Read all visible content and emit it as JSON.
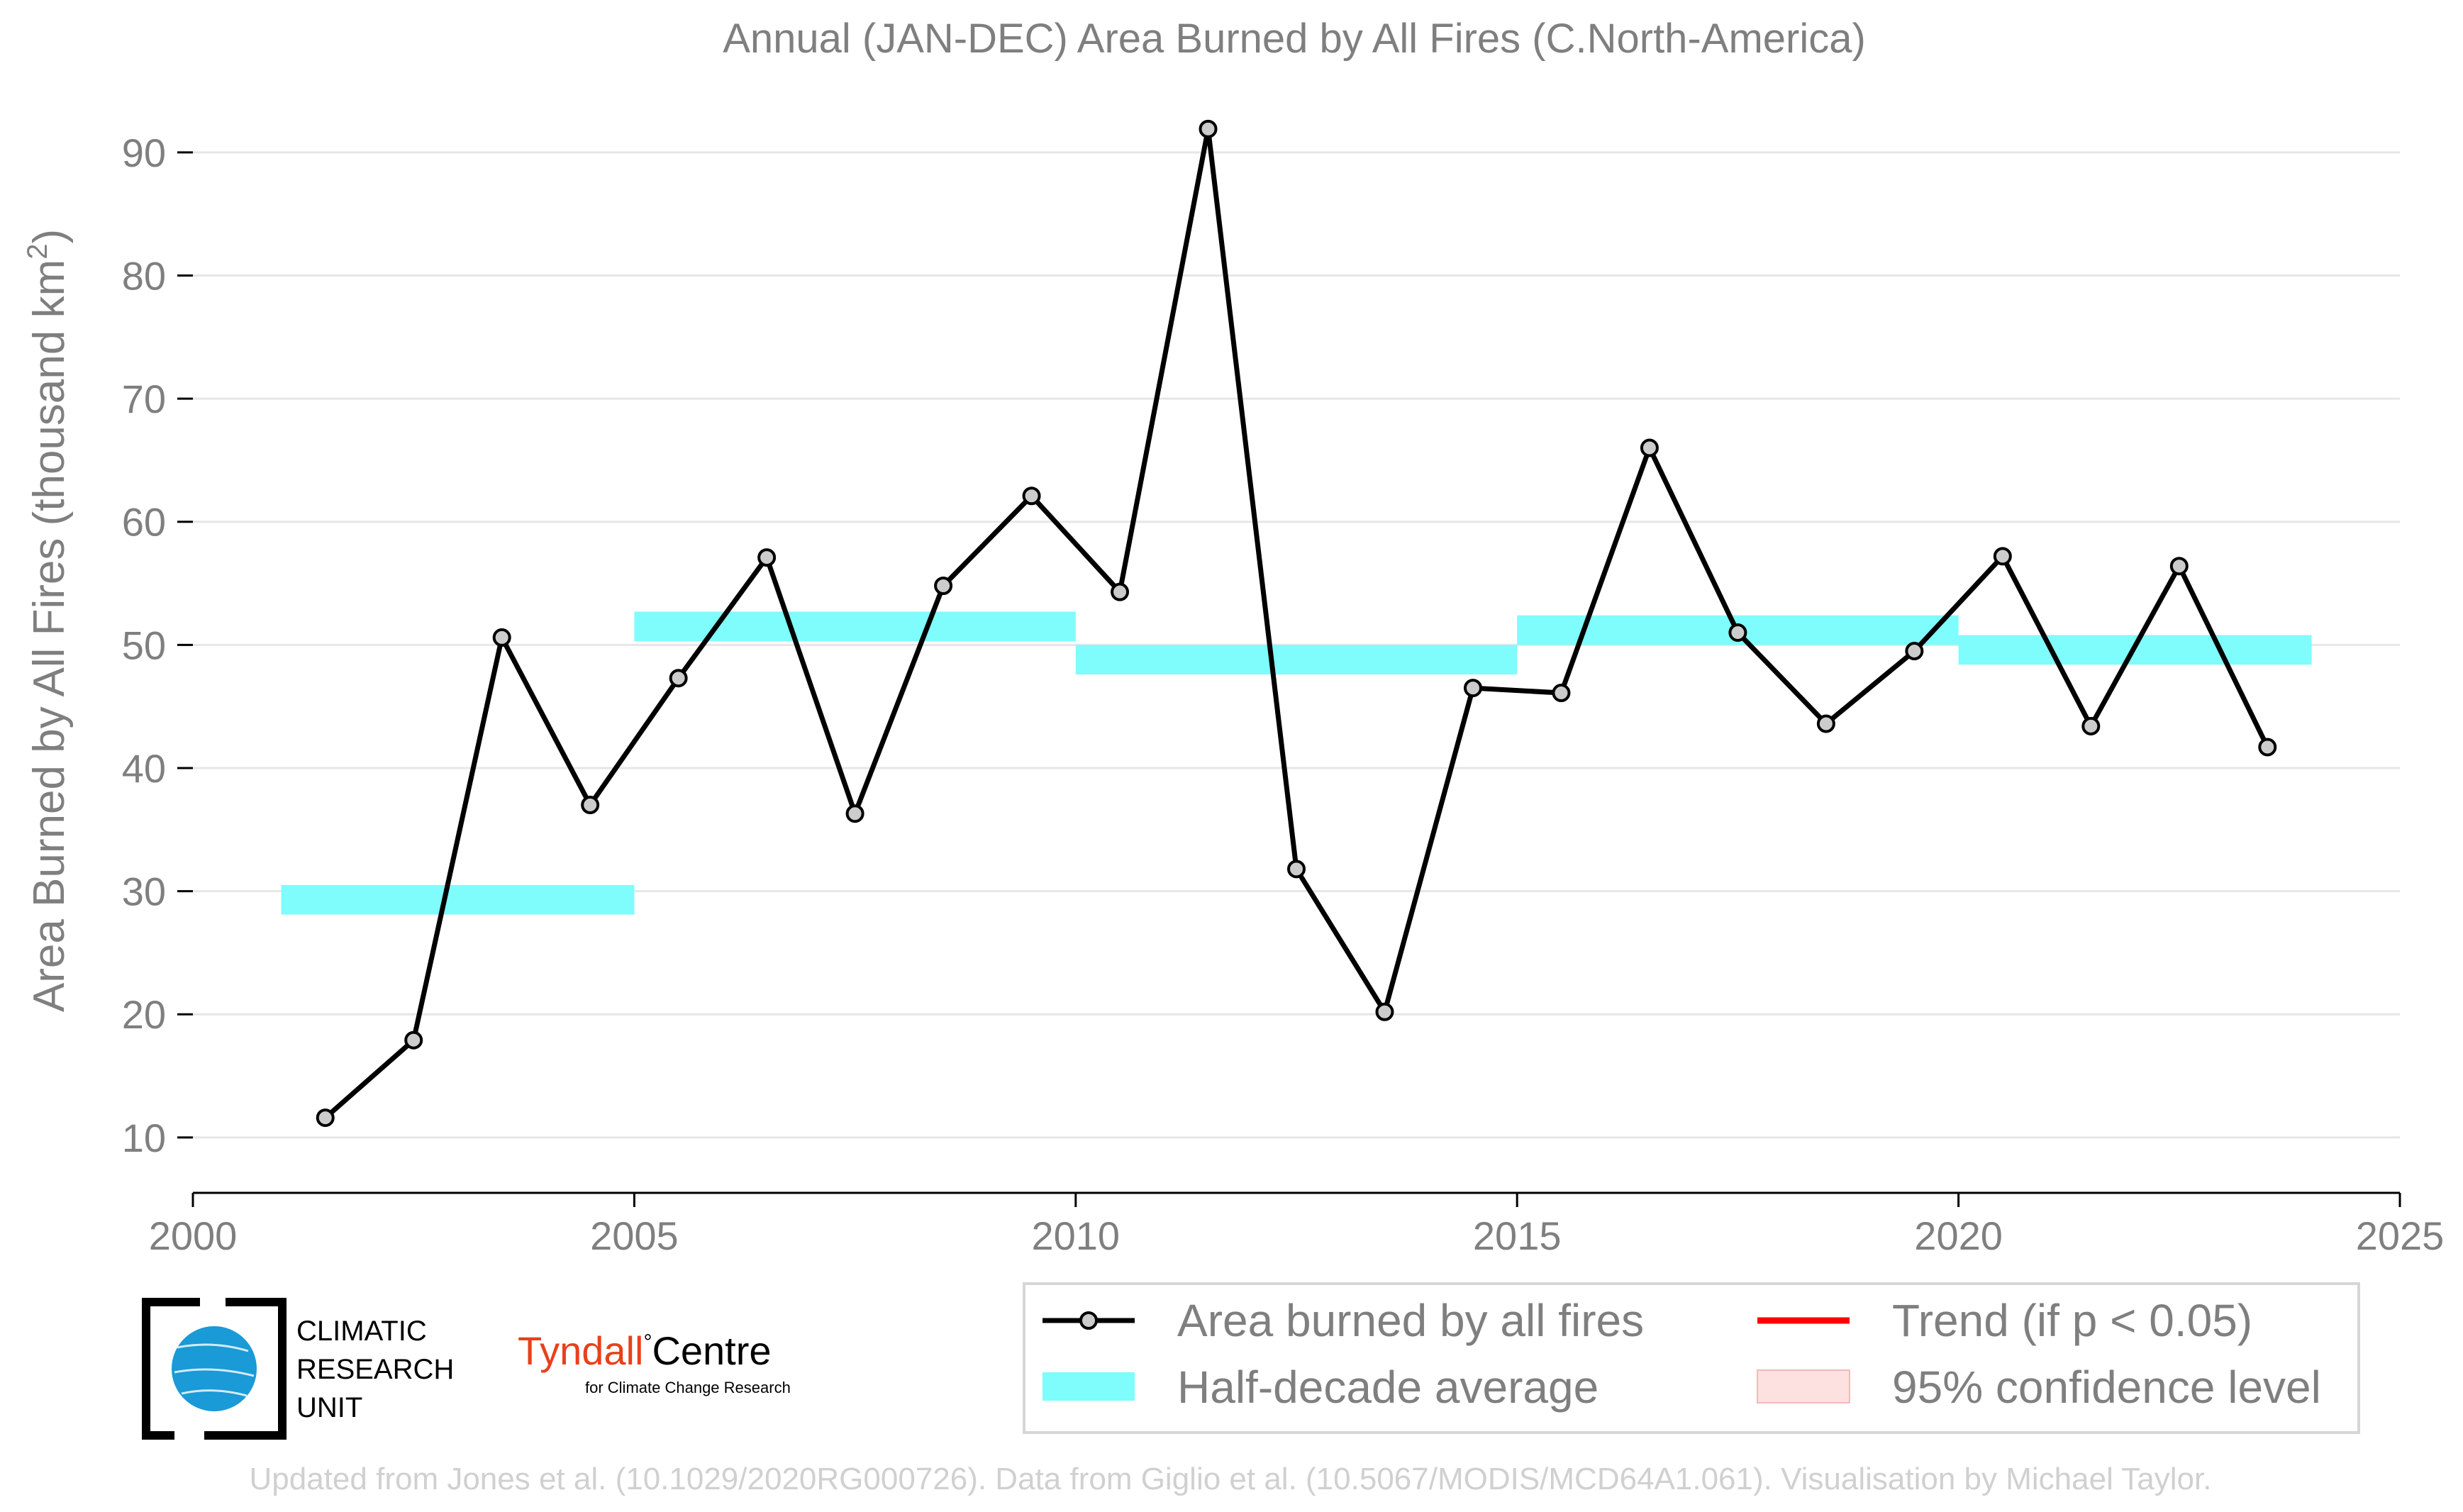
{
  "chart_data": {
    "type": "line",
    "title": "Annual (JAN-DEC) Area Burned by All Fires (C.North-America)",
    "ylabel_main": "Area Burned by All Fires (thousand km",
    "ylabel_sup": "2",
    "ylabel_tail": ")",
    "xlabel": "",
    "xlim": [
      2000,
      2025
    ],
    "ylim": [
      5.5,
      95
    ],
    "xticks": [
      "2000",
      "2005",
      "2010",
      "2015",
      "2020",
      "2025"
    ],
    "yticks": [
      "10",
      "20",
      "30",
      "40",
      "50",
      "60",
      "70",
      "80",
      "90"
    ],
    "grid": "horizontal",
    "legend_position": "bottom-right",
    "series": [
      {
        "name": "Area burned by all fires",
        "color": "#000000",
        "marker_fill": "#cccccc",
        "x": [
          2001.5,
          2002.5,
          2003.5,
          2004.5,
          2005.5,
          2006.5,
          2007.5,
          2008.5,
          2009.5,
          2010.5,
          2011.5,
          2012.5,
          2013.5,
          2014.5,
          2015.5,
          2016.5,
          2017.5,
          2018.5,
          2019.5,
          2020.5,
          2021.5,
          2022.5,
          2023.5
        ],
        "values": [
          11.6,
          17.9,
          50.6,
          37.0,
          47.3,
          57.1,
          36.3,
          54.8,
          62.1,
          54.3,
          91.9,
          31.8,
          20.2,
          46.5,
          46.1,
          66.0,
          51.0,
          43.6,
          49.5,
          57.2,
          43.4,
          56.4,
          41.7
        ]
      }
    ],
    "half_decade_average": {
      "name": "Half-decade average",
      "color": "#7ffcfc",
      "segments": [
        {
          "x_start": 2001,
          "x_end": 2005,
          "value": 29.3
        },
        {
          "x_start": 2005,
          "x_end": 2010,
          "value": 51.5
        },
        {
          "x_start": 2010,
          "x_end": 2015,
          "value": 48.8
        },
        {
          "x_start": 2015,
          "x_end": 2020,
          "value": 51.2
        },
        {
          "x_start": 2020,
          "x_end": 2024,
          "value": 49.6
        }
      ]
    },
    "legend": [
      {
        "label": "Area burned by all fires",
        "symbol": "line-marker",
        "color": "#000000"
      },
      {
        "label": "Trend (if p < 0.05)",
        "symbol": "line",
        "color": "#ff0000"
      },
      {
        "label": "Half-decade average",
        "symbol": "band",
        "color": "#7ffcfc"
      },
      {
        "label": "95% confidence level",
        "symbol": "band",
        "color": "#fde0e0"
      }
    ]
  },
  "logos": {
    "cru_line1": "CLIMATIC",
    "cru_line2": "RESEARCH",
    "cru_line3": "UNIT",
    "tyndall_name": "Tyndall",
    "tyndall_centre": "Centre",
    "tyndall_sub": "for Climate Change Research"
  },
  "footer": "Updated from Jones et al. (10.1029/2020RG000726). Data from Giglio et al. (10.5067/MODIS/MCD64A1.061). Visualisation by Michael Taylor."
}
